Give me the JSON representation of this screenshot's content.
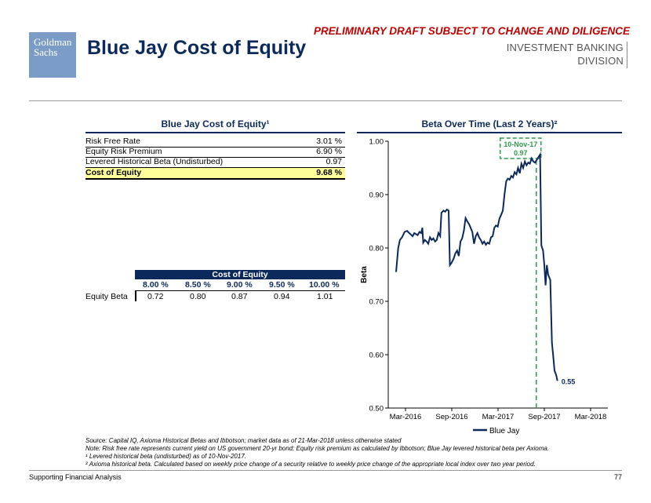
{
  "header": {
    "logo_line1": "Goldman",
    "logo_line2": "Sachs",
    "title": "Blue Jay Cost of Equity",
    "draft_notice": "PRELIMINARY DRAFT SUBJECT TO CHANGE AND DILIGENCE",
    "division_line1": "INVESTMENT BANKING",
    "division_line2": "DIVISION"
  },
  "coe_table": {
    "title": "Blue Jay Cost of Equity¹",
    "rows": [
      {
        "label": "Risk Free Rate",
        "value": "3.01 %"
      },
      {
        "label": "Equity Risk Premium",
        "value": "6.90 %"
      },
      {
        "label": "Levered Historical Beta (Undisturbed)",
        "value": "0.97"
      },
      {
        "label": "Cost of Equity",
        "value": "9.68 %"
      }
    ]
  },
  "sensitivity": {
    "header": "Cost of Equity",
    "columns": [
      "8.00 %",
      "8.50 %",
      "9.00 %",
      "9.50 %",
      "10.00 %"
    ],
    "row_label": "Equity Beta",
    "values": [
      "0.72",
      "0.80",
      "0.87",
      "0.94",
      "1.01"
    ]
  },
  "chart_data": {
    "type": "line",
    "title": "Beta Over Time (Last 2 Years)²",
    "xlabel": "",
    "ylabel": "Beta",
    "ylim": [
      0.5,
      1.0
    ],
    "yticks": [
      "0.50",
      "0.60",
      "0.70",
      "0.80",
      "0.90",
      "1.00"
    ],
    "xticks": [
      "Mar-2016",
      "Sep-2016",
      "Mar-2017",
      "Sep-2017",
      "Mar-2018"
    ],
    "series": [
      {
        "name": "Blue Jay",
        "color": "#0b2a5b",
        "points": [
          [
            0.0,
            0.755
          ],
          [
            0.01,
            0.8
          ],
          [
            0.018,
            0.815
          ],
          [
            0.028,
            0.82
          ],
          [
            0.04,
            0.83
          ],
          [
            0.052,
            0.832
          ],
          [
            0.062,
            0.828
          ],
          [
            0.07,
            0.825
          ],
          [
            0.078,
            0.822
          ],
          [
            0.086,
            0.828
          ],
          [
            0.094,
            0.826
          ],
          [
            0.102,
            0.824
          ],
          [
            0.11,
            0.83
          ],
          [
            0.118,
            0.828
          ],
          [
            0.124,
            0.838
          ],
          [
            0.128,
            0.81
          ],
          [
            0.136,
            0.815
          ],
          [
            0.144,
            0.812
          ],
          [
            0.152,
            0.808
          ],
          [
            0.16,
            0.82
          ],
          [
            0.168,
            0.815
          ],
          [
            0.176,
            0.818
          ],
          [
            0.184,
            0.812
          ],
          [
            0.192,
            0.815
          ],
          [
            0.2,
            0.828
          ],
          [
            0.208,
            0.822
          ],
          [
            0.214,
            0.866
          ],
          [
            0.224,
            0.87
          ],
          [
            0.232,
            0.868
          ],
          [
            0.24,
            0.872
          ],
          [
            0.248,
            0.87
          ],
          [
            0.254,
            0.768
          ],
          [
            0.262,
            0.772
          ],
          [
            0.272,
            0.78
          ],
          [
            0.28,
            0.79
          ],
          [
            0.288,
            0.795
          ],
          [
            0.296,
            0.785
          ],
          [
            0.304,
            0.812
          ],
          [
            0.312,
            0.818
          ],
          [
            0.32,
            0.832
          ],
          [
            0.328,
            0.856
          ],
          [
            0.336,
            0.85
          ],
          [
            0.344,
            0.845
          ],
          [
            0.352,
            0.838
          ],
          [
            0.36,
            0.83
          ],
          [
            0.368,
            0.808
          ],
          [
            0.376,
            0.822
          ],
          [
            0.384,
            0.828
          ],
          [
            0.392,
            0.82
          ],
          [
            0.4,
            0.815
          ],
          [
            0.408,
            0.808
          ],
          [
            0.416,
            0.812
          ],
          [
            0.424,
            0.806
          ],
          [
            0.432,
            0.81
          ],
          [
            0.44,
            0.808
          ],
          [
            0.448,
            0.82
          ],
          [
            0.456,
            0.822
          ],
          [
            0.464,
            0.838
          ],
          [
            0.472,
            0.842
          ],
          [
            0.48,
            0.84
          ],
          [
            0.488,
            0.855
          ],
          [
            0.496,
            0.862
          ],
          [
            0.504,
            0.87
          ],
          [
            0.512,
            0.9
          ],
          [
            0.52,
            0.925
          ],
          [
            0.528,
            0.93
          ],
          [
            0.536,
            0.928
          ],
          [
            0.544,
            0.935
          ],
          [
            0.552,
            0.932
          ],
          [
            0.56,
            0.942
          ],
          [
            0.568,
            0.938
          ],
          [
            0.576,
            0.95
          ],
          [
            0.584,
            0.94
          ],
          [
            0.592,
            0.958
          ],
          [
            0.6,
            0.95
          ],
          [
            0.608,
            0.962
          ],
          [
            0.616,
            0.955
          ],
          [
            0.624,
            0.96
          ],
          [
            0.632,
            0.958
          ],
          [
            0.64,
            0.968
          ],
          [
            0.648,
            0.962
          ],
          [
            0.656,
            0.96
          ],
          [
            0.664,
            0.965
          ],
          [
            0.672,
            0.97
          ],
          [
            0.68,
            0.975
          ],
          [
            0.686,
            0.805
          ],
          [
            0.694,
            0.795
          ],
          [
            0.7,
            0.768
          ],
          [
            0.706,
            0.73
          ],
          [
            0.712,
            0.768
          ],
          [
            0.718,
            0.75
          ],
          [
            0.728,
            0.74
          ],
          [
            0.736,
            0.622
          ],
          [
            0.742,
            0.598
          ],
          [
            0.748,
            0.57
          ],
          [
            0.756,
            0.562
          ],
          [
            0.762,
            0.551
          ]
        ]
      }
    ],
    "annotations": [
      {
        "label": "10-Nov-17",
        "value": "0.97",
        "x": 0.662
      },
      {
        "label": "0.55",
        "x": 0.762,
        "y": 0.551
      }
    ],
    "legend": "bottom"
  },
  "footnotes": {
    "source": "Source: Capital IQ, Axioma Historical Betas and Ibbotson; market data as of 21-Mar-2018 unless otherwise stated",
    "note": "Note: Risk free rate represents current yield on US government 20-yr bond; Equity risk premium as calculated by Ibbotson; Blue Jay levered historical beta per Axioma.",
    "fn1": "¹ Levered historical beta (undisturbed) as of 10-Nov-2017.",
    "fn2": "² Axioma historical beta. Calculated based on weekly price change of a security relative to weekly price change of the appropriate local index over two year period."
  },
  "footer": {
    "left": "Supporting Financial Analysis",
    "page": "77"
  }
}
